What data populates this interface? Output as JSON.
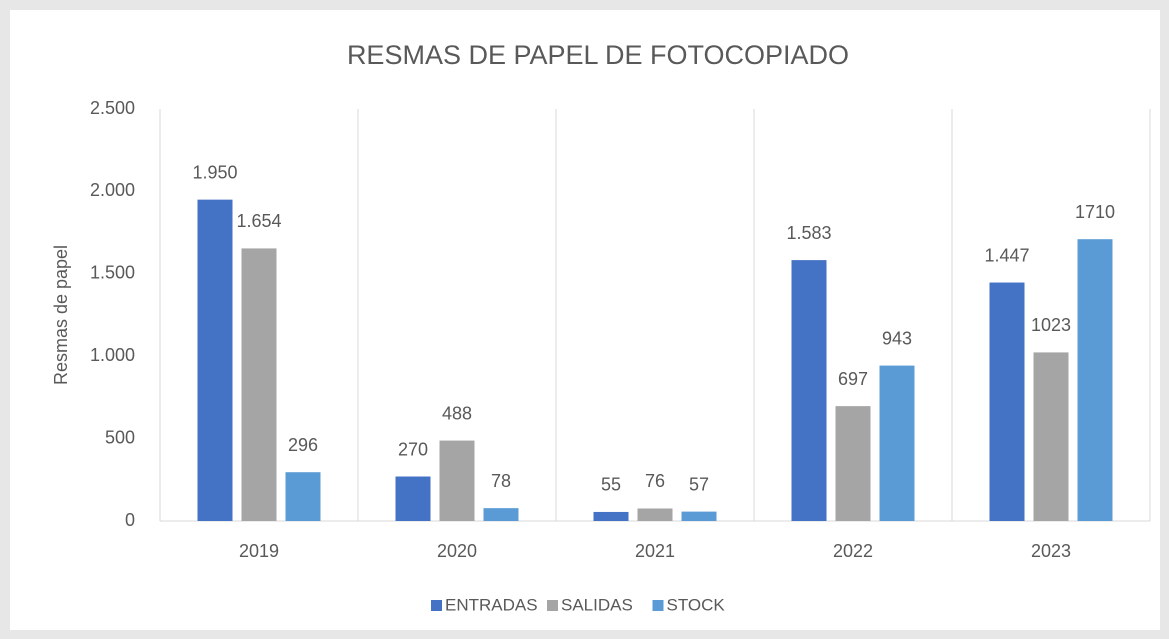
{
  "chart_data": {
    "type": "bar",
    "title": "RESMAS DE PAPEL DE FOTOCOPIADO",
    "y_label": "Resmas de papel",
    "categories": [
      "2019",
      "2020",
      "2021",
      "2022",
      "2023"
    ],
    "series": [
      {
        "name": "ENTRADAS",
        "color": "#4472c4",
        "values": [
          1950,
          270,
          55,
          1583,
          1447
        ],
        "value_labels": [
          "1.950",
          "270",
          "55",
          "1.583",
          "1.447"
        ]
      },
      {
        "name": "SALIDAS",
        "color": "#a5a5a5",
        "values": [
          1654,
          488,
          76,
          697,
          1023
        ],
        "value_labels": [
          "1.654",
          "488",
          "76",
          "697",
          "1023"
        ]
      },
      {
        "name": "STOCK",
        "color": "#5b9bd5",
        "values": [
          296,
          78,
          57,
          943,
          1710
        ],
        "value_labels": [
          "296",
          "78",
          "57",
          "943",
          "1710"
        ]
      }
    ],
    "ylim": [
      0,
      2500
    ],
    "yticks": [
      0,
      500,
      {
        "value": 1000,
        "label": "1.000"
      },
      {
        "value": 1500,
        "label": "1.500"
      },
      {
        "value": 2000,
        "label": "2.000"
      },
      {
        "value": 2500,
        "label": "2.500"
      }
    ],
    "legend": "bottom"
  }
}
